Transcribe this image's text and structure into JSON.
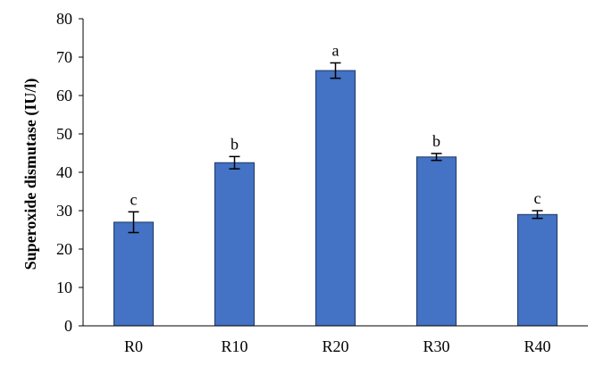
{
  "chart_data": {
    "type": "bar",
    "title": "",
    "xlabel": "",
    "ylabel": "Superoxide dismutase (IU/l)",
    "ylim": [
      0,
      80
    ],
    "yticks": [
      0,
      10,
      20,
      30,
      40,
      50,
      60,
      70,
      80
    ],
    "grid": false,
    "categories": [
      "R0",
      "R10",
      "R20",
      "R30",
      "R40"
    ],
    "values": [
      27.0,
      42.5,
      66.5,
      44.0,
      29.0
    ],
    "errors": [
      2.7,
      1.6,
      2.0,
      0.9,
      1.0
    ],
    "significance_labels": [
      "c",
      "b",
      "a",
      "b",
      "c"
    ],
    "colors": {
      "bar_fill": "#4472C4",
      "bar_stroke": "#1F3864",
      "axis": "#000000"
    }
  }
}
